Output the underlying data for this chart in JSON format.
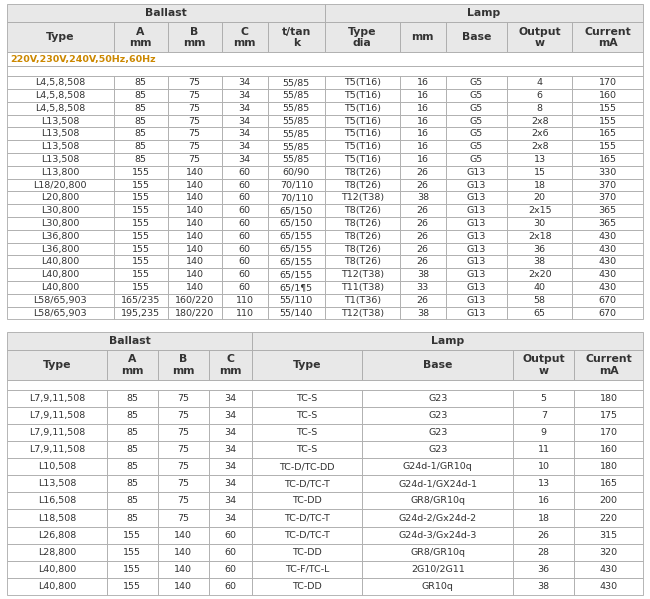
{
  "table1": {
    "col_headers": [
      "Type",
      "A\nmm",
      "B\nmm",
      "C\nmm",
      "t/tan\nk",
      "Type\ndia",
      "mm",
      "Base",
      "Output\nw",
      "Current\nmA"
    ],
    "ballast_cols": 5,
    "subtitle": "220V,230V,240V,50Hz,60Hz",
    "rows": [
      [
        "L4,5,8,508",
        "85",
        "75",
        "34",
        "55/85",
        "T5(T16)",
        "16",
        "G5",
        "4",
        "170"
      ],
      [
        "L4,5,8,508",
        "85",
        "75",
        "34",
        "55/85",
        "T5(T16)",
        "16",
        "G5",
        "6",
        "160"
      ],
      [
        "L4,5,8,508",
        "85",
        "75",
        "34",
        "55/85",
        "T5(T16)",
        "16",
        "G5",
        "8",
        "155"
      ],
      [
        "L13,508",
        "85",
        "75",
        "34",
        "55/85",
        "T5(T16)",
        "16",
        "G5",
        "2x8",
        "155"
      ],
      [
        "L13,508",
        "85",
        "75",
        "34",
        "55/85",
        "T5(T16)",
        "16",
        "G5",
        "2x6",
        "165"
      ],
      [
        "L13,508",
        "85",
        "75",
        "34",
        "55/85",
        "T5(T16)",
        "16",
        "G5",
        "2x8",
        "155"
      ],
      [
        "L13,508",
        "85",
        "75",
        "34",
        "55/85",
        "T5(T16)",
        "16",
        "G5",
        "13",
        "165"
      ],
      [
        "L13,800",
        "155",
        "140",
        "60",
        "60/90",
        "T8(T26)",
        "26",
        "G13",
        "15",
        "330"
      ],
      [
        "L18/20,800",
        "155",
        "140",
        "60",
        "70/110",
        "T8(T26)",
        "26",
        "G13",
        "18",
        "370"
      ],
      [
        "L20,800",
        "155",
        "140",
        "60",
        "70/110",
        "T12(T38)",
        "38",
        "G13",
        "20",
        "370"
      ],
      [
        "L30,800",
        "155",
        "140",
        "60",
        "65/150",
        "T8(T26)",
        "26",
        "G13",
        "2x15",
        "365"
      ],
      [
        "L30,800",
        "155",
        "140",
        "60",
        "65/150",
        "T8(T26)",
        "26",
        "G13",
        "30",
        "365"
      ],
      [
        "L36,800",
        "155",
        "140",
        "60",
        "65/155",
        "T8(T26)",
        "26",
        "G13",
        "2x18",
        "430"
      ],
      [
        "L36,800",
        "155",
        "140",
        "60",
        "65/155",
        "T8(T26)",
        "26",
        "G13",
        "36",
        "430"
      ],
      [
        "L40,800",
        "155",
        "140",
        "60",
        "65/155",
        "T8(T26)",
        "26",
        "G13",
        "38",
        "430"
      ],
      [
        "L40,800",
        "155",
        "140",
        "60",
        "65/155",
        "T12(T38)",
        "38",
        "G13",
        "2x20",
        "430"
      ],
      [
        "L40,800",
        "155",
        "140",
        "60",
        "65/1¶5",
        "T11(T38)",
        "33",
        "G13",
        "40",
        "430"
      ],
      [
        "L58/65,903",
        "165/235",
        "160/220",
        "110",
        "55/110",
        "T1(T36)",
        "26",
        "G13",
        "58",
        "670"
      ],
      [
        "L58/65,903",
        "195,235",
        "180/220",
        "110",
        "55/140",
        "T12(T38)",
        "38",
        "G13",
        "65",
        "670"
      ]
    ]
  },
  "table2": {
    "col_headers": [
      "Type",
      "A\nmm",
      "B\nmm",
      "C\nmm",
      "Type",
      "Base",
      "Output\nw",
      "Current\nmA"
    ],
    "ballast_cols": 4,
    "rows": [
      [
        "L7,9,11,508",
        "85",
        "75",
        "34",
        "TC-S",
        "G23",
        "5",
        "180"
      ],
      [
        "L7,9,11,508",
        "85",
        "75",
        "34",
        "TC-S",
        "G23",
        "7",
        "175"
      ],
      [
        "L7,9,11,508",
        "85",
        "75",
        "34",
        "TC-S",
        "G23",
        "9",
        "170"
      ],
      [
        "L7,9,11,508",
        "85",
        "75",
        "34",
        "TC-S",
        "G23",
        "11",
        "160"
      ],
      [
        "L10,508",
        "85",
        "75",
        "34",
        "TC-D/TC-DD",
        "G24d-1/GR10q",
        "10",
        "180"
      ],
      [
        "L13,508",
        "85",
        "75",
        "34",
        "TC-D/TC-T",
        "G24d-1/GX24d-1",
        "13",
        "165"
      ],
      [
        "L16,508",
        "85",
        "75",
        "34",
        "TC-DD",
        "GR8/GR10q",
        "16",
        "200"
      ],
      [
        "L18,508",
        "85",
        "75",
        "34",
        "TC-D/TC-T",
        "G24d-2/Gx24d-2",
        "18",
        "220"
      ],
      [
        "L26,808",
        "155",
        "140",
        "60",
        "TC-D/TC-T",
        "G24d-3/Gx24d-3",
        "26",
        "315"
      ],
      [
        "L28,800",
        "155",
        "140",
        "60",
        "TC-DD",
        "GR8/GR10q",
        "28",
        "320"
      ],
      [
        "L40,800",
        "155",
        "140",
        "60",
        "TC-F/TC-L",
        "2G10/2G11",
        "36",
        "430"
      ],
      [
        "L40,800",
        "155",
        "140",
        "60",
        "TC-DD",
        "GR10q",
        "38",
        "430"
      ]
    ]
  },
  "bg_color": "#f5f5f5",
  "header_bg": "#e8e8e8",
  "data_bg": "#ffffff",
  "border_color": "#aaaaaa",
  "subtitle_color": "#cc8800",
  "text_color": "#333333",
  "font_size": 6.8,
  "header_font_size": 7.8
}
